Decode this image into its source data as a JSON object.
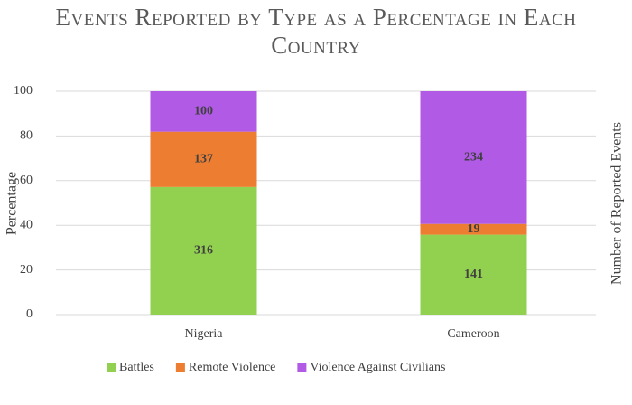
{
  "chart_data": {
    "type": "bar",
    "stack": "percent",
    "title": "Events Reported by Type as a Percentage in Each Country",
    "y_label": "Percentage",
    "y2_label": "Number of Reported Events",
    "categories": [
      "Nigeria",
      "Cameroon"
    ],
    "series": [
      {
        "name": "Battles",
        "color": "#92d050",
        "values": [
          316,
          141
        ]
      },
      {
        "name": "Remote Violence",
        "color": "#ed7d31",
        "values": [
          137,
          19
        ]
      },
      {
        "name": "Violence Against Civilians",
        "color": "#b05ae6",
        "values": [
          100,
          234
        ]
      }
    ],
    "ylim": [
      0,
      100
    ],
    "yticks": [
      0,
      20,
      40,
      60,
      80,
      100
    ],
    "grid": true,
    "legend": "bottom"
  }
}
